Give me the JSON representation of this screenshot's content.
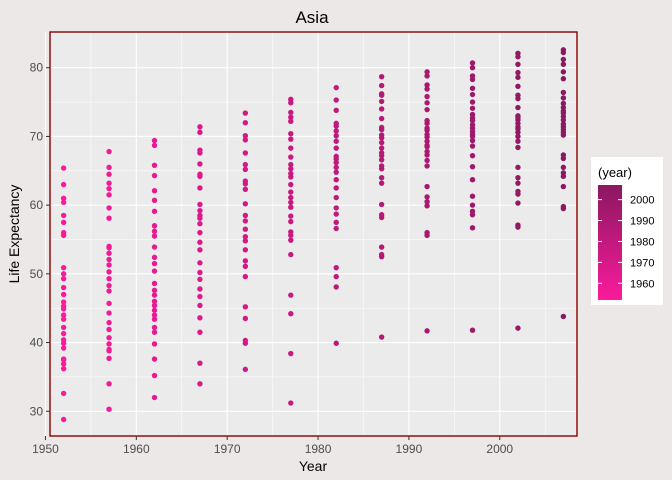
{
  "chart_data": {
    "type": "scatter",
    "title": "Asia",
    "xlabel": "Year",
    "ylabel": "Life Expectancy",
    "xlim": [
      1950.5,
      2008.5
    ],
    "ylim": [
      26.4,
      85.2
    ],
    "x_ticks": [
      1950,
      1960,
      1970,
      1980,
      1990,
      2000
    ],
    "y_ticks": [
      30,
      40,
      50,
      60,
      70,
      80
    ],
    "grid": true,
    "legend": {
      "title": "(year)",
      "position": "right",
      "gradient_low": "#fb1a9c",
      "gradient_high": "#8b1860",
      "range": [
        1952,
        2007
      ],
      "ticks": [
        1960,
        1970,
        1980,
        1990,
        2000
      ]
    },
    "colors": {
      "panel_border": "#8b0000",
      "background": "#ebe8e7",
      "grid": "#ffffff"
    },
    "series": [
      {
        "x": 1952,
        "y": [
          28.8,
          32.6,
          36.2,
          36.9,
          37.5,
          37.6,
          39.2,
          39.9,
          40.4,
          41.3,
          42.2,
          43.4,
          44.0,
          44.9,
          45.3,
          45.9,
          47.0,
          48.0,
          49.3,
          50.0,
          50.9,
          55.6,
          56.0,
          57.5,
          58.5,
          60.4,
          61.0,
          63.0,
          65.4
        ]
      },
      {
        "x": 1957,
        "y": [
          30.3,
          34.0,
          37.7,
          38.8,
          39.0,
          39.8,
          40.7,
          41.9,
          42.9,
          44.3,
          45.7,
          47.5,
          48.3,
          49.3,
          50.3,
          51.3,
          52.1,
          53.0,
          53.8,
          54.0,
          58.1,
          59.6,
          61.5,
          62.4,
          63.2,
          64.5,
          65.5,
          67.8
        ]
      },
      {
        "x": 1962,
        "y": [
          32.0,
          35.2,
          37.6,
          39.8,
          41.5,
          42.2,
          43.4,
          44.0,
          44.7,
          45.4,
          46.0,
          46.9,
          47.6,
          48.6,
          50.4,
          51.5,
          52.4,
          53.9,
          55.5,
          56.2,
          57.0,
          59.1,
          60.7,
          62.1,
          64.3,
          65.8,
          68.7,
          69.4
        ]
      },
      {
        "x": 1967,
        "y": [
          34.0,
          37.0,
          41.5,
          43.6,
          45.4,
          46.7,
          47.8,
          49.2,
          50.2,
          51.6,
          53.5,
          54.6,
          56.0,
          57.3,
          58.1,
          58.5,
          59.2,
          60.1,
          62.5,
          64.2,
          64.5,
          66.0,
          67.6,
          68.0,
          70.6,
          71.4
        ]
      },
      {
        "x": 1972,
        "y": [
          36.1,
          39.9,
          40.3,
          43.5,
          45.2,
          49.6,
          51.1,
          51.9,
          53.5,
          54.8,
          55.4,
          56.5,
          57.7,
          58.5,
          60.2,
          62.3,
          63.1,
          63.5,
          65.2,
          65.9,
          67.6,
          69.5,
          70.1,
          72.0,
          73.4
        ]
      },
      {
        "x": 1977,
        "y": [
          31.2,
          38.4,
          44.2,
          46.9,
          52.8,
          54.9,
          55.6,
          56.1,
          57.6,
          58.4,
          59.7,
          60.4,
          61.1,
          61.9,
          63.0,
          64.1,
          64.6,
          65.3,
          65.9,
          67.0,
          68.3,
          69.6,
          70.4,
          72.2,
          72.8,
          73.5,
          74.9,
          75.4
        ]
      },
      {
        "x": 1982,
        "y": [
          39.9,
          48.1,
          49.6,
          50.9,
          56.6,
          57.5,
          58.7,
          59.6,
          61.1,
          62.5,
          63.7,
          64.8,
          65.5,
          66.2,
          66.7,
          67.1,
          68.3,
          69.3,
          70.1,
          70.8,
          71.5,
          71.9,
          73.8,
          75.3,
          77.1
        ]
      },
      {
        "x": 1987,
        "y": [
          40.8,
          52.5,
          52.8,
          53.9,
          58.2,
          58.6,
          60.1,
          63.2,
          64.0,
          65.3,
          65.7,
          66.6,
          67.2,
          67.6,
          68.3,
          69.1,
          69.8,
          70.2,
          71.0,
          71.3,
          72.6,
          74.0,
          75.1,
          76.0,
          76.2,
          77.4,
          78.7
        ]
      },
      {
        "x": 1992,
        "y": [
          41.7,
          55.6,
          56.0,
          59.9,
          60.5,
          61.2,
          62.7,
          65.7,
          66.5,
          67.3,
          67.8,
          68.5,
          68.7,
          69.3,
          69.9,
          70.3,
          70.9,
          71.2,
          71.9,
          72.3,
          73.9,
          74.9,
          75.8,
          76.9,
          77.5,
          78.8,
          79.4
        ]
      },
      {
        "x": 1997,
        "y": [
          41.8,
          56.7,
          58.6,
          59.1,
          60.0,
          61.3,
          63.7,
          65.6,
          67.2,
          68.6,
          69.4,
          70.0,
          70.3,
          70.7,
          71.2,
          71.7,
          72.3,
          72.7,
          73.2,
          74.1,
          75.0,
          76.1,
          77.0,
          78.3,
          78.8,
          80.0,
          80.7
        ]
      },
      {
        "x": 2002,
        "y": [
          42.1,
          56.8,
          57.1,
          60.3,
          61.6,
          62.0,
          63.2,
          64.0,
          65.5,
          68.4,
          69.3,
          70.0,
          70.6,
          71.1,
          71.4,
          71.9,
          72.4,
          72.8,
          73.0,
          74.2,
          75.5,
          76.0,
          77.3,
          78.6,
          79.3,
          80.5,
          81.6,
          82.1
        ]
      },
      {
        "x": 2007,
        "y": [
          43.8,
          59.5,
          59.8,
          62.7,
          64.2,
          64.7,
          65.5,
          66.8,
          67.3,
          70.2,
          70.6,
          71.0,
          71.4,
          71.8,
          72.4,
          72.9,
          73.4,
          73.7,
          74.2,
          74.8,
          75.6,
          76.4,
          78.4,
          79.4,
          80.5,
          81.2,
          82.2,
          82.6
        ]
      }
    ]
  }
}
